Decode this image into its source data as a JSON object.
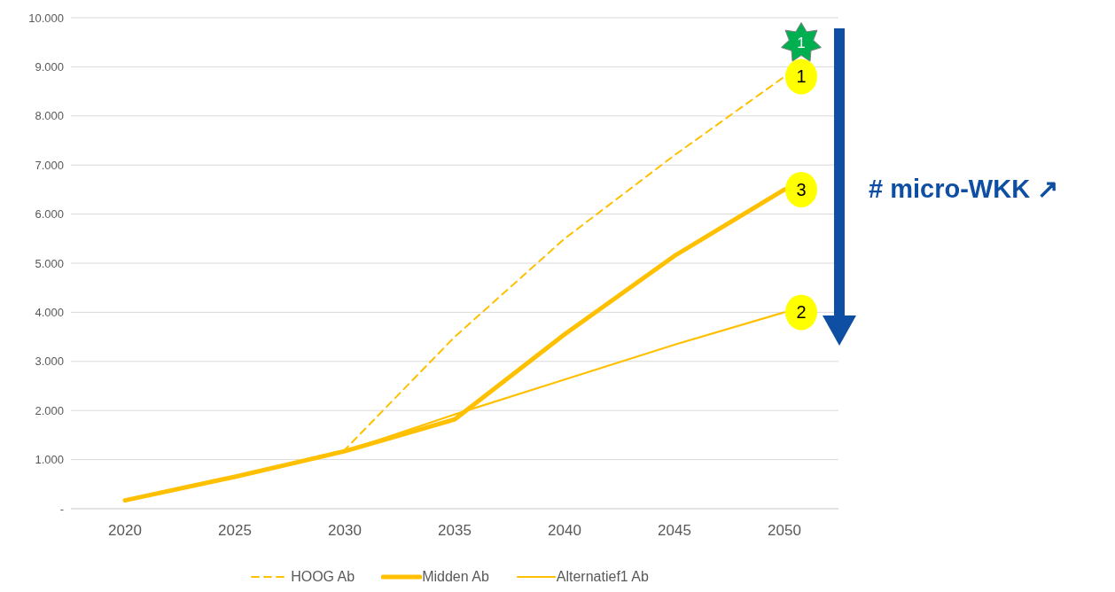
{
  "chart_data": {
    "type": "line",
    "categories": [
      "2020",
      "2025",
      "2030",
      "2035",
      "2040",
      "2045",
      "2050"
    ],
    "series": [
      {
        "name": "HOOG Ab",
        "color": "#ffc000",
        "line_style": "dashed",
        "values": [
          170,
          650,
          1200,
          3500,
          5500,
          7200,
          8800
        ]
      },
      {
        "name": "Midden Ab",
        "color": "#ffc000",
        "line_style": "solid",
        "values": [
          170,
          650,
          1170,
          1820,
          3550,
          5150,
          6500
        ]
      },
      {
        "name": "Alternatief1 Ab",
        "color": "#ffc000",
        "line_style": "solid",
        "values": [
          170,
          650,
          1170,
          1920,
          2630,
          3340,
          4000
        ]
      }
    ],
    "ylim": [
      0,
      10000
    ],
    "yticks": [
      {
        "value": 0,
        "label": "-"
      },
      {
        "value": 1000,
        "label": "1.000"
      },
      {
        "value": 2000,
        "label": "2.000"
      },
      {
        "value": 3000,
        "label": "3.000"
      },
      {
        "value": 4000,
        "label": "4.000"
      },
      {
        "value": 5000,
        "label": "5.000"
      },
      {
        "value": 6000,
        "label": "6.000"
      },
      {
        "value": 7000,
        "label": "7.000"
      },
      {
        "value": 8000,
        "label": "8.000"
      },
      {
        "value": 9000,
        "label": "9.000"
      },
      {
        "value": 10000,
        "label": "10.000"
      }
    ],
    "grid": "y",
    "legend": "bottom",
    "marker": "none",
    "annotations": [
      "1",
      {
        "text": "1",
        "x": "2050",
        "y": 8800
      },
      {
        "text": "3",
        "x": "2050",
        "y": 6500
      },
      {
        "text": "2",
        "x": "2050",
        "y": 4000
      },
      "# micro-WKK ↗"
    ]
  }
}
